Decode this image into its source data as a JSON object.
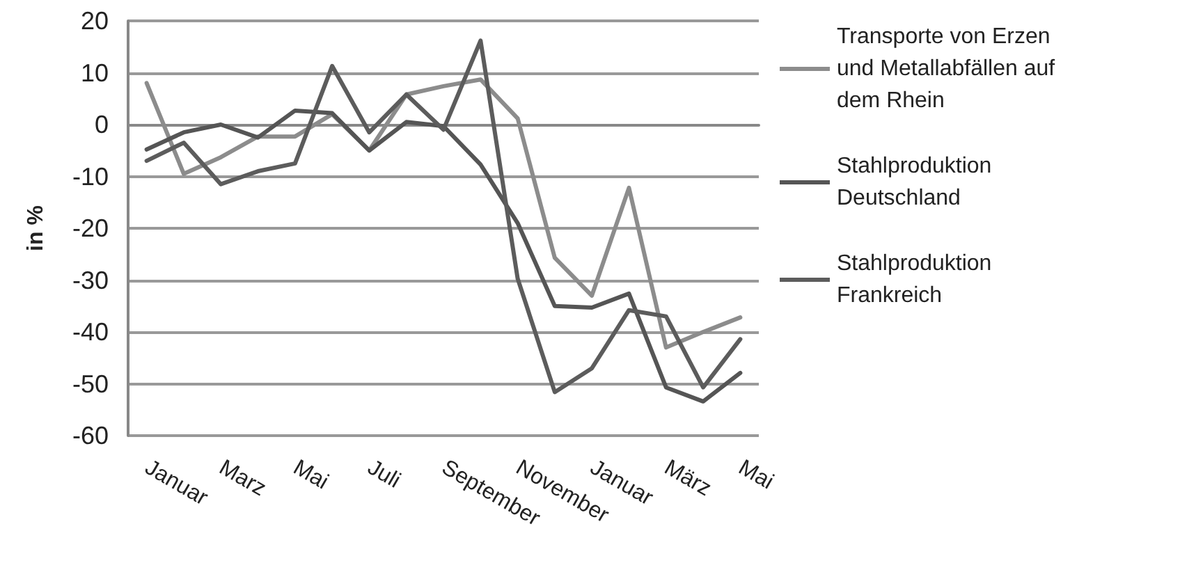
{
  "chart_data": {
    "type": "line",
    "ylabel": "in %",
    "categories": [
      "Januar",
      null,
      "Marz",
      null,
      "Mai",
      null,
      "Juli",
      null,
      "September",
      null,
      "November",
      null,
      "Januar",
      null,
      "März",
      null,
      "Mai"
    ],
    "series": [
      {
        "name": "Transporte von Erzen und Metallabfällen auf dem Rhein",
        "color": "#8c8c8c",
        "values": [
          8,
          -9.5,
          -6.3,
          -2.3,
          -2.3,
          2,
          -5,
          5.8,
          7.4,
          8.7,
          1.2,
          -25.7,
          -33,
          -12.2,
          -43,
          -40,
          -37.2
        ]
      },
      {
        "name": "Stahlproduktion Deutschland",
        "color": "#555555",
        "values": [
          -4.8,
          -1.5,
          0,
          -2.5,
          2.7,
          2.2,
          -5,
          0.5,
          -0.3,
          -7.7,
          -19,
          -35,
          -35.3,
          -32.6,
          -50.7,
          -53.4,
          -47.9
        ]
      },
      {
        "name": "Stahlproduktion Frankreich",
        "color": "#5c5c5c",
        "values": [
          -7,
          -3.5,
          -11.5,
          -9,
          -7.5,
          11.3,
          -1.5,
          5.8,
          -1,
          16.2,
          -29.7,
          -51.6,
          -47,
          -35.8,
          -37,
          -50.7,
          -41.4
        ]
      }
    ],
    "ylim": [
      -60,
      20
    ],
    "yticks": [
      -60,
      -50,
      -40,
      -30,
      -20,
      -10,
      0,
      10,
      20
    ],
    "grid": "y",
    "legend": "right",
    "marker": "none",
    "line_style": "solid"
  }
}
